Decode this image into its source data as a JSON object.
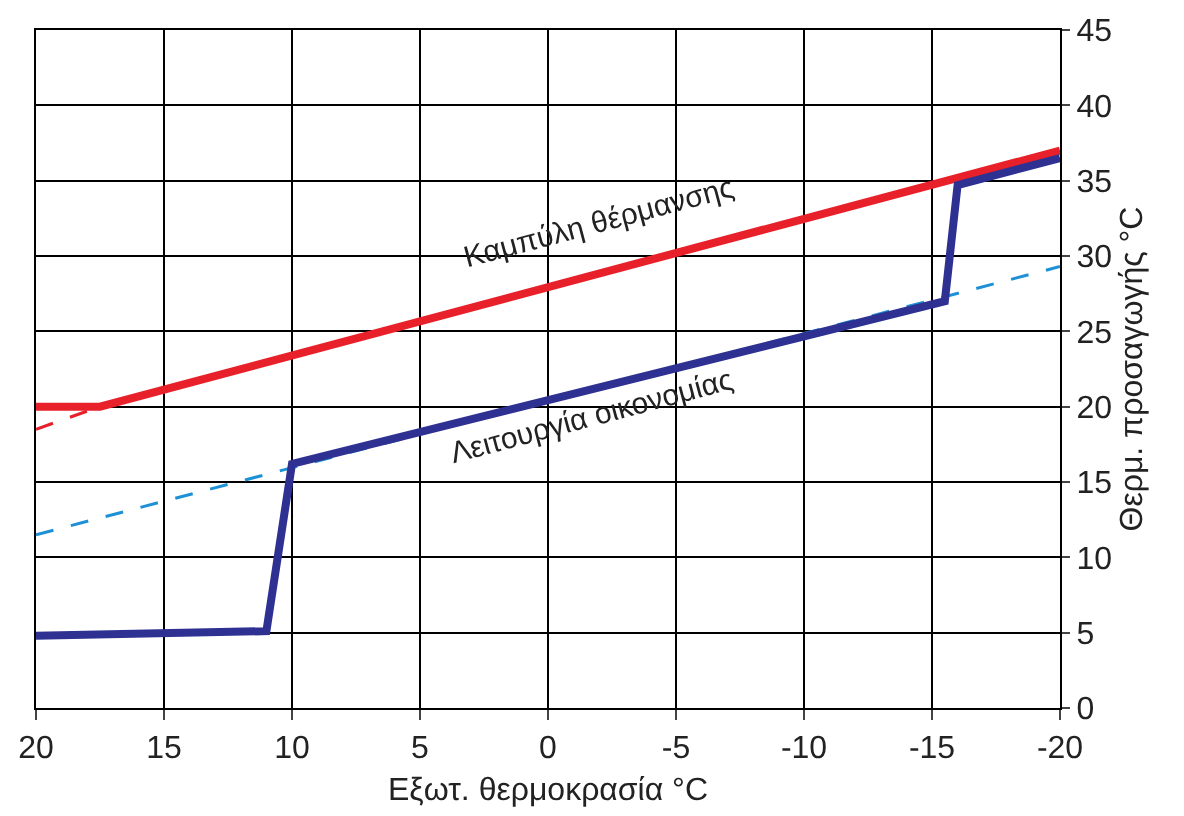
{
  "chart_data": {
    "type": "line",
    "xlabel": "Εξωτ. θερμοκρασία °C",
    "ylabel": "Θερμ. προσαγωγής °C",
    "xlim": [
      20,
      -20
    ],
    "xticks": [
      20,
      15,
      10,
      5,
      0,
      -5,
      -10,
      -15,
      -20
    ],
    "ylim": [
      0,
      45
    ],
    "yticks": [
      0,
      5,
      10,
      15,
      20,
      25,
      30,
      35,
      40,
      45
    ],
    "grid": true,
    "marker": "none",
    "series": [
      {
        "color": "#e8202a",
        "line_style": "dashed",
        "x": [
          20,
          17.5
        ],
        "values": [
          18.5,
          20
        ]
      },
      {
        "color": "#e8202a",
        "line_style": "solid",
        "x": [
          20,
          17.5,
          -20
        ],
        "values": [
          20,
          20,
          37
        ]
      },
      {
        "color": "#1e90d6",
        "line_style": "dashed",
        "x": [
          20,
          -20
        ],
        "values": [
          11.5,
          29.3
        ]
      },
      {
        "color": "#2e3192",
        "line_style": "solid",
        "x": [
          20,
          11,
          10,
          -15.5,
          -16,
          -20
        ],
        "values": [
          4.8,
          5.1,
          16.2,
          27,
          34.7,
          36.5
        ]
      }
    ],
    "annotations": [
      "Καμπύλη θέρμανσης",
      "Λειτουργία οικονομίας"
    ]
  }
}
